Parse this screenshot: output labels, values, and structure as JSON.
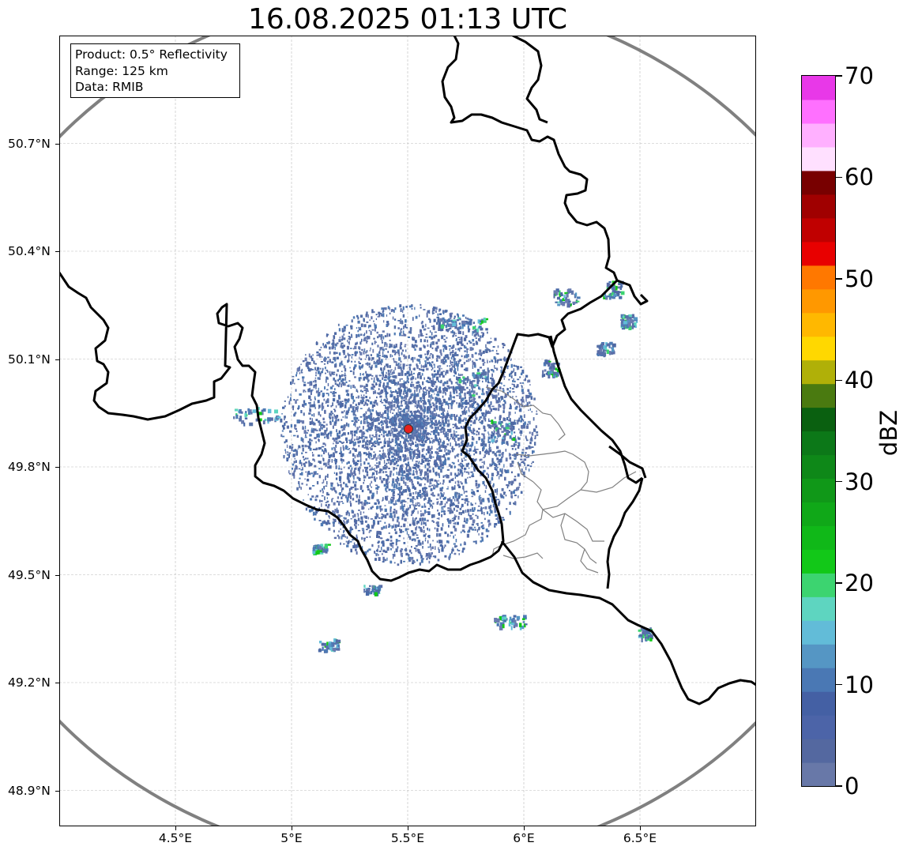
{
  "title": "16.08.2025 01:13 UTC",
  "info_box": {
    "product": "Product: 0.5° Reflectivity",
    "range": "Range: 125 km",
    "data": "Data: RMIB"
  },
  "map": {
    "lon_range": [
      4.0,
      7.0
    ],
    "lat_range": [
      48.8,
      51.0
    ],
    "lon_ticks": [
      {
        "value": 4.5,
        "label": "4.5°E"
      },
      {
        "value": 5.0,
        "label": "5°E"
      },
      {
        "value": 5.5,
        "label": "5.5°E"
      },
      {
        "value": 6.0,
        "label": "6°E"
      },
      {
        "value": 6.5,
        "label": "6.5°E"
      }
    ],
    "lat_ticks": [
      {
        "value": 48.9,
        "label": "48.9°N"
      },
      {
        "value": 49.2,
        "label": "49.2°N"
      },
      {
        "value": 49.5,
        "label": "49.5°N"
      },
      {
        "value": 49.8,
        "label": "49.8°N"
      },
      {
        "value": 50.1,
        "label": "50.1°N"
      },
      {
        "value": 50.4,
        "label": "50.4°N"
      },
      {
        "value": 50.7,
        "label": "50.7°N"
      }
    ],
    "radar_site": {
      "lon": 5.505,
      "lat": 49.914
    },
    "range_km": 125,
    "colors": {
      "range_ring": "#808080",
      "border": "#000000",
      "admin_border": "#808080",
      "grid": "#bbbbbb",
      "radar_marker": "#e8201c"
    }
  },
  "colorbar": {
    "unit": "dBZ",
    "min": 0,
    "max": 70,
    "step": 2.5,
    "colors": [
      "#6878a8",
      "#5468a0",
      "#4c64a8",
      "#4460a4",
      "#4a78b4",
      "#5596c4",
      "#62bcd8",
      "#5ed5c0",
      "#3cd470",
      "#12c818",
      "#10b818",
      "#10a818",
      "#109818",
      "#0e8818",
      "#0c7818",
      "#0a6010",
      "#4a7a10",
      "#b0b008",
      "#ffd800",
      "#ffb800",
      "#ff9800",
      "#ff7800",
      "#e80000",
      "#c00000",
      "#a00000",
      "#780000",
      "#ffe0ff",
      "#ffb0ff",
      "#ff70ff",
      "#e838e8"
    ],
    "ticks": [
      {
        "value": 0,
        "label": "0"
      },
      {
        "value": 10,
        "label": "10"
      },
      {
        "value": 20,
        "label": "20"
      },
      {
        "value": 30,
        "label": "30"
      },
      {
        "value": 40,
        "label": "40"
      },
      {
        "value": 50,
        "label": "50"
      },
      {
        "value": 60,
        "label": "60"
      },
      {
        "value": 70,
        "label": "70"
      }
    ]
  }
}
